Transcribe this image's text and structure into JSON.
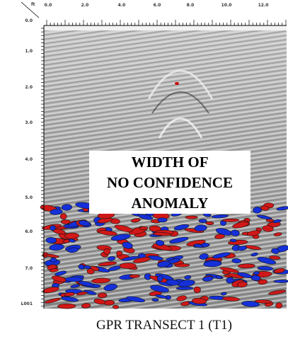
{
  "axes": {
    "corner_label": "ft",
    "top_labels": [
      "0.0",
      "2.0",
      "4.0",
      "6.0",
      "8.0",
      "10.0",
      "12.0"
    ],
    "left_labels": [
      "0.0",
      "1.0",
      "2.0",
      "3.0",
      "4.0",
      "5.0",
      "6.0",
      "7.0"
    ],
    "line_label": "L001"
  },
  "annotation": {
    "lines": [
      "WIDTH OF",
      "NO CONFIDENCE",
      "ANOMALY"
    ]
  },
  "caption": "GPR TRANSECT 1 (T1)"
}
